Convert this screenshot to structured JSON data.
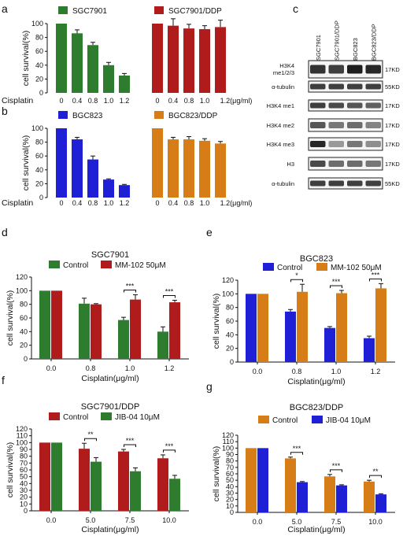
{
  "panels": [
    {
      "id": "a",
      "label": "a"
    },
    {
      "id": "b",
      "label": "b"
    },
    {
      "id": "c",
      "label": "c"
    },
    {
      "id": "d",
      "label": "d"
    },
    {
      "id": "e",
      "label": "e"
    },
    {
      "id": "f",
      "label": "f"
    },
    {
      "id": "g",
      "label": "g"
    }
  ],
  "chart_data": [
    {
      "panel": "a",
      "type": "bar",
      "ylabel": "cell survival(%)",
      "xlabel": "",
      "ylim": [
        0,
        100
      ],
      "yticks": [
        0,
        20,
        40,
        60,
        80,
        100
      ],
      "row_label": "Cisplatin",
      "unit_label": "(μg/ml)",
      "groups": [
        {
          "name": "SGC7901",
          "color": "#2e7d2e",
          "categories": [
            "0",
            "0.4",
            "0.8",
            "1.0",
            "1.2"
          ],
          "values": [
            100,
            86,
            69,
            40,
            25
          ],
          "errors": [
            0,
            5,
            4,
            4,
            3
          ]
        },
        {
          "name": "SGC7901/DDP",
          "color": "#b01c1c",
          "categories": [
            "0",
            "0.4",
            "0.8",
            "1.0",
            "1.2"
          ],
          "values": [
            100,
            97,
            93,
            92,
            95
          ],
          "errors": [
            0,
            10,
            6,
            5,
            10
          ]
        }
      ]
    },
    {
      "panel": "b",
      "type": "bar",
      "ylabel": "cell survival(%)",
      "xlabel": "",
      "ylim": [
        0,
        100
      ],
      "yticks": [
        0,
        20,
        40,
        60,
        80,
        100
      ],
      "row_label": "Cisplatin",
      "unit_label": "(μg/ml)",
      "groups": [
        {
          "name": "BGC823",
          "color": "#1f1fd6",
          "categories": [
            "0",
            "0.4",
            "0.8",
            "1.0",
            "1.2"
          ],
          "values": [
            100,
            84,
            55,
            26,
            18
          ],
          "errors": [
            0,
            3,
            5,
            1,
            1
          ]
        },
        {
          "name": "BGC823/DDP",
          "color": "#d67d18",
          "categories": [
            "0",
            "0.4",
            "0.8",
            "1.0",
            "1.2"
          ],
          "values": [
            100,
            84,
            84,
            82,
            78
          ],
          "errors": [
            0,
            3,
            4,
            3,
            3
          ]
        }
      ]
    },
    {
      "panel": "d",
      "type": "bar",
      "title": "SGC7901",
      "ylabel": "cell survival(%)",
      "xlabel": "Cisplatin(μg/ml)",
      "ylim": [
        0,
        120
      ],
      "yticks": [
        0,
        20,
        40,
        60,
        80,
        100,
        120
      ],
      "categories": [
        "0.0",
        "0.8",
        "1.0",
        "1.2"
      ],
      "series": [
        {
          "name": "Control",
          "color": "#2e7d2e",
          "values": [
            100,
            81,
            57,
            40
          ],
          "errors": [
            0,
            8,
            4,
            7
          ]
        },
        {
          "name": "MM-102 50μM",
          "color": "#b01c1c",
          "values": [
            100,
            80,
            87,
            83
          ],
          "errors": [
            0,
            1,
            7,
            3
          ]
        }
      ],
      "significance": [
        {
          "cat": 2,
          "text": "***"
        },
        {
          "cat": 3,
          "text": "***"
        }
      ]
    },
    {
      "panel": "e",
      "type": "bar",
      "title": "BGC823",
      "ylabel": "cell survival(%)",
      "xlabel": "Cisplatin(μg/ml)",
      "ylim": [
        0,
        120
      ],
      "yticks": [
        0,
        20,
        40,
        60,
        80,
        100,
        120
      ],
      "categories": [
        "0.0",
        "0.8",
        "1.0",
        "1.2"
      ],
      "series": [
        {
          "name": "Control",
          "color": "#1f1fd6",
          "values": [
            100,
            74,
            50,
            35
          ],
          "errors": [
            0,
            3,
            2,
            3
          ]
        },
        {
          "name": "MM-102 50μM",
          "color": "#d67d18",
          "values": [
            100,
            103,
            101,
            108
          ],
          "errors": [
            0,
            11,
            4,
            7
          ]
        }
      ],
      "significance": [
        {
          "cat": 1,
          "text": "*"
        },
        {
          "cat": 2,
          "text": "***"
        },
        {
          "cat": 3,
          "text": "***"
        }
      ]
    },
    {
      "panel": "f",
      "type": "bar",
      "title": "SGC7901/DDP",
      "ylabel": "cell survival(%)",
      "xlabel": "Cisplatin(μg/ml)",
      "ylim": [
        0,
        120
      ],
      "yticks": [
        0,
        10,
        20,
        30,
        40,
        50,
        60,
        70,
        80,
        90,
        100,
        110,
        120
      ],
      "categories": [
        "0.0",
        "5.0",
        "7.5",
        "10.0"
      ],
      "series": [
        {
          "name": "Control",
          "color": "#b01c1c",
          "values": [
            100,
            91,
            87,
            77
          ],
          "errors": [
            0,
            8,
            3,
            5
          ]
        },
        {
          "name": "JIB-04 10μM",
          "color": "#2e7d2e",
          "values": [
            100,
            72,
            58,
            47
          ],
          "errors": [
            0,
            6,
            5,
            5
          ]
        }
      ],
      "significance": [
        {
          "cat": 1,
          "text": "**"
        },
        {
          "cat": 2,
          "text": "***"
        },
        {
          "cat": 3,
          "text": "***"
        }
      ]
    },
    {
      "panel": "g",
      "type": "bar",
      "title": "BGC823/DDP",
      "ylabel": "cell survival(%)",
      "xlabel": "Cisplatin(μg/ml)",
      "ylim": [
        0,
        120
      ],
      "yticks": [
        0,
        10,
        20,
        30,
        40,
        50,
        60,
        70,
        80,
        90,
        100,
        110,
        120
      ],
      "categories": [
        "0.0",
        "5.0",
        "7.5",
        "10.0"
      ],
      "series": [
        {
          "name": "Control",
          "color": "#d67d18",
          "values": [
            100,
            84,
            56,
            48
          ],
          "errors": [
            0,
            2,
            3,
            2
          ]
        },
        {
          "name": "JIB-04 10μM",
          "color": "#1f1fd6",
          "values": [
            100,
            47,
            42,
            28
          ],
          "errors": [
            0,
            1,
            1,
            1
          ]
        }
      ],
      "significance": [
        {
          "cat": 1,
          "text": "***"
        },
        {
          "cat": 2,
          "text": "***"
        },
        {
          "cat": 3,
          "text": "**"
        }
      ]
    }
  ],
  "western_blot": {
    "panel": "c",
    "lanes": [
      "SGC7901",
      "SGC7901/DDP",
      "BGC823",
      "BGC823/DDP"
    ],
    "rows": [
      {
        "label": "H3K4 me1/2/3",
        "size": "17KD",
        "intensity": [
          0.85,
          0.8,
          0.95,
          0.9
        ]
      },
      {
        "label": "α-tubulin",
        "size": "55KD",
        "intensity": [
          0.8,
          0.8,
          0.8,
          0.8
        ]
      },
      {
        "label": "H3K4 me1",
        "size": "17KD",
        "intensity": [
          0.8,
          0.75,
          0.7,
          0.65
        ]
      },
      {
        "label": "H3K4 me2",
        "size": "17KD",
        "intensity": [
          0.7,
          0.55,
          0.6,
          0.5
        ]
      },
      {
        "label": "H3K4 me3",
        "size": "17KD",
        "intensity": [
          0.9,
          0.4,
          0.55,
          0.45
        ]
      },
      {
        "label": "H3",
        "size": "17KD",
        "intensity": [
          0.75,
          0.6,
          0.6,
          0.55
        ]
      },
      {
        "label": "α-tubulin",
        "size": "55KD",
        "intensity": [
          0.8,
          0.8,
          0.8,
          0.8
        ]
      }
    ]
  }
}
